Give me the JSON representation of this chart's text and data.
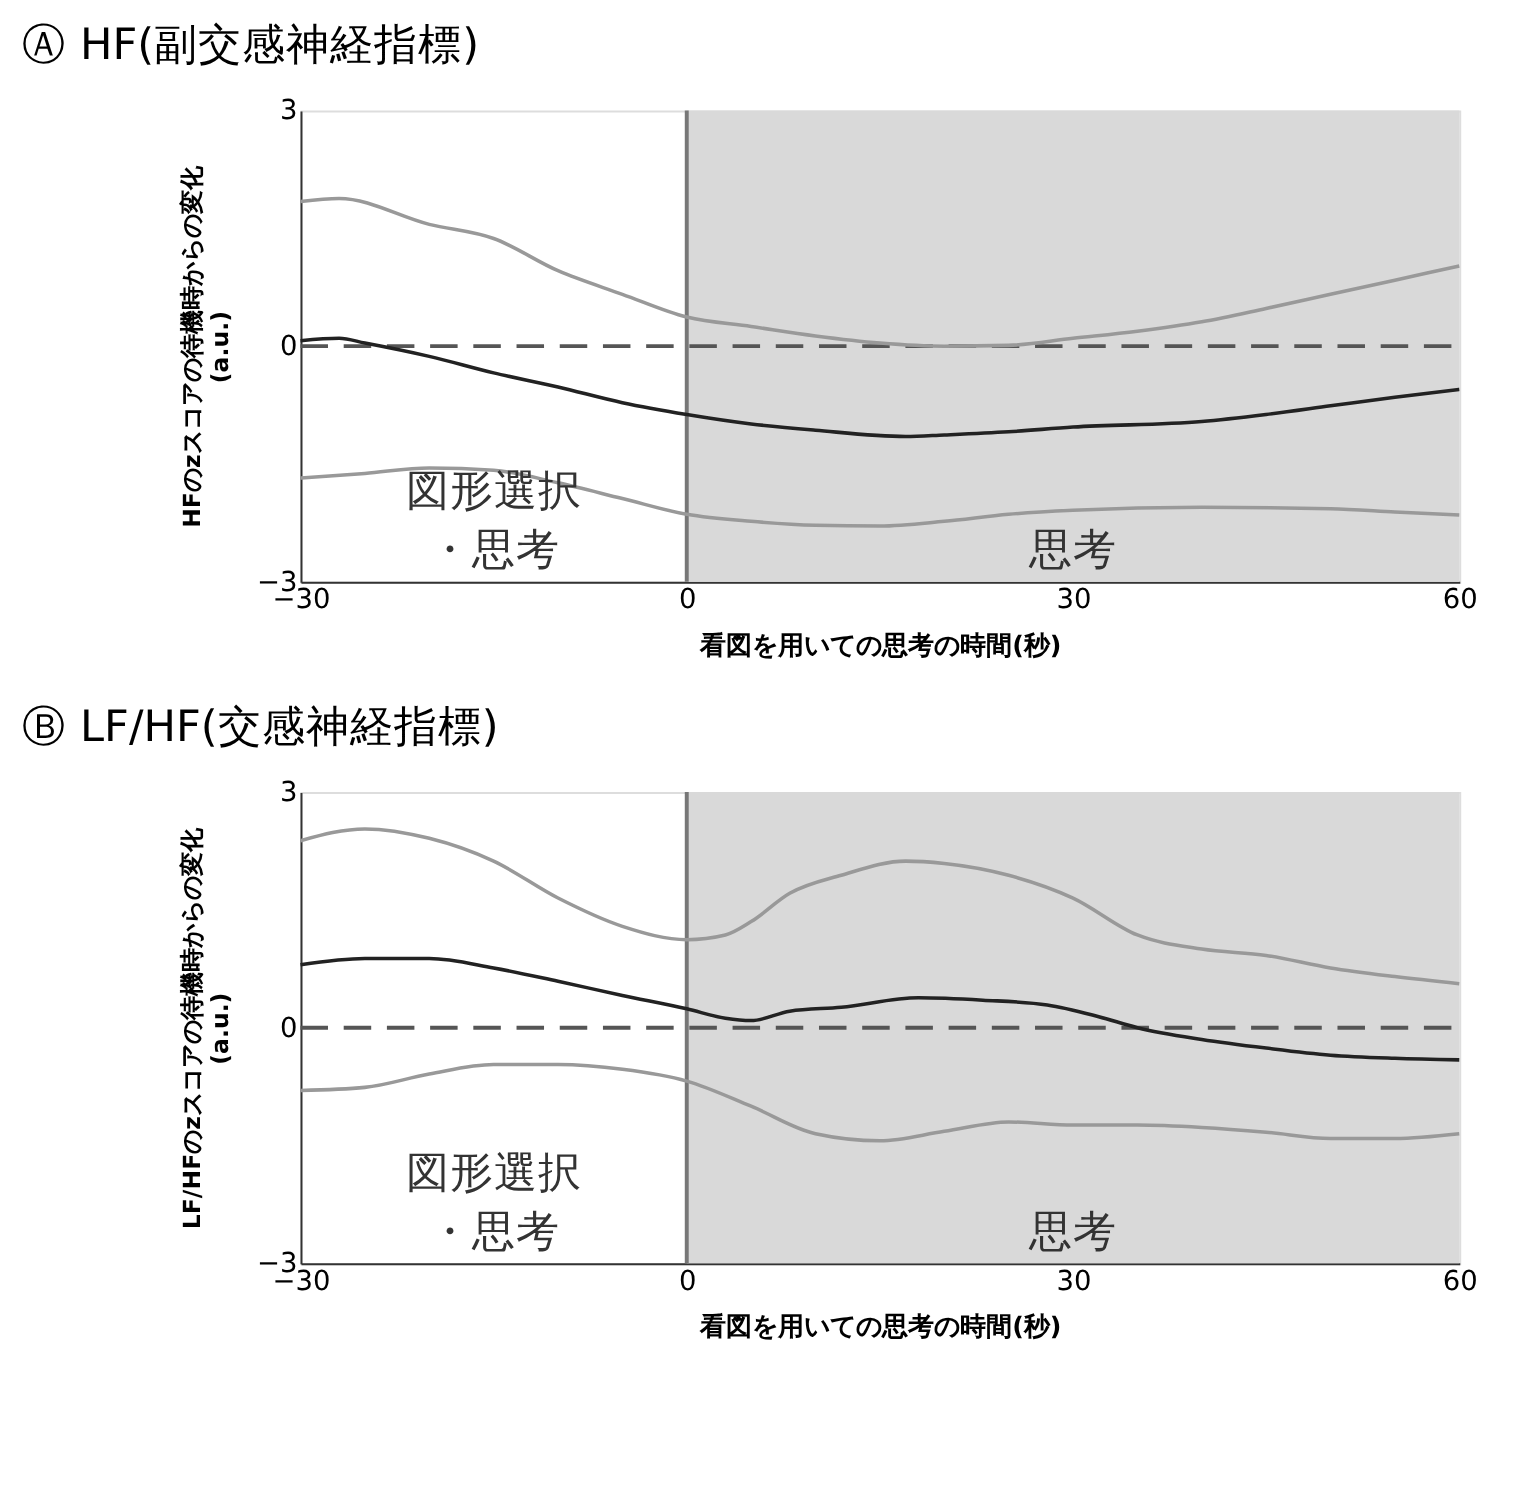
{
  "chart_data": [
    {
      "type": "line",
      "title": "Ⓐ HF(副交感神経指標)",
      "xlabel": "看図を用いての思考の時間(秒)",
      "ylabel": "HFのzスコアの待機時からの変化 (a.u.)",
      "xlim": [
        -30,
        60
      ],
      "xticks": [
        -30,
        0,
        30,
        60
      ],
      "ylim": [
        -3,
        3
      ],
      "yticks": [
        -3,
        0,
        3
      ],
      "series": [
        {
          "color": "#999999",
          "x": [
            -30,
            -27,
            -20,
            -15,
            -10,
            -5,
            0,
            5,
            10,
            15,
            20,
            25,
            30,
            35,
            40,
            45,
            50,
            55,
            60
          ],
          "values": [
            1.84,
            1.88,
            1.55,
            1.37,
            0.96,
            0.66,
            0.37,
            0.25,
            0.13,
            0.04,
            0.0,
            0.01,
            0.1,
            0.19,
            0.31,
            0.48,
            0.66,
            0.84,
            1.02
          ]
        },
        {
          "color": "#222222",
          "x": [
            -30,
            -27,
            -25,
            -20,
            -15,
            -10,
            -5,
            0,
            5,
            10,
            17,
            20,
            25,
            30,
            40,
            45,
            50,
            55,
            60
          ],
          "values": [
            0.07,
            0.1,
            0.04,
            -0.13,
            -0.34,
            -0.52,
            -0.72,
            -0.87,
            -0.99,
            -1.07,
            -1.15,
            -1.13,
            -1.09,
            -1.03,
            -0.96,
            -0.87,
            -0.76,
            -0.65,
            -0.55
          ]
        },
        {
          "color": "#999999",
          "x": [
            -30,
            -25,
            -20,
            -15,
            -10,
            -5,
            0,
            5,
            10,
            15,
            20,
            25,
            30,
            40,
            50,
            55,
            60
          ],
          "values": [
            -1.68,
            -1.62,
            -1.55,
            -1.58,
            -1.74,
            -1.94,
            -2.14,
            -2.23,
            -2.28,
            -2.29,
            -2.23,
            -2.14,
            -2.09,
            -2.05,
            -2.07,
            -2.11,
            -2.15
          ]
        }
      ],
      "ref_lines": [
        {
          "axis": "y",
          "value": 0,
          "color": "#555555",
          "line_style": "dashed"
        },
        {
          "axis": "x",
          "value": 0,
          "color": "#777777",
          "line_style": "solid"
        }
      ],
      "annotations": [
        "図形選択・思考"
      ],
      "bands": [
        {
          "axis": "x",
          "from": 0,
          "to": 60,
          "label": "思考",
          "color": "#d9d9d9"
        }
      ]
    },
    {
      "type": "line",
      "title": "Ⓑ LF/HF(交感神経指標)",
      "xlabel": "看図を用いての思考の時間(秒)",
      "ylabel": "LF/HFのzスコアの待機時からの変化 (a.u.)",
      "xlim": [
        -30,
        60
      ],
      "xticks": [
        -30,
        0,
        30,
        60
      ],
      "ylim": [
        -3,
        3
      ],
      "yticks": [
        -3,
        0,
        3
      ],
      "series": [
        {
          "color": "#999999",
          "x": [
            -30,
            -25,
            -20,
            -15,
            -10,
            -5,
            0,
            3,
            5,
            8,
            12,
            17,
            20,
            25,
            30,
            35,
            40,
            45,
            50,
            55,
            60
          ],
          "values": [
            2.38,
            2.53,
            2.41,
            2.12,
            1.65,
            1.29,
            1.12,
            1.18,
            1.35,
            1.71,
            1.94,
            2.12,
            2.09,
            1.94,
            1.65,
            1.18,
            1.0,
            0.92,
            0.76,
            0.65,
            0.56
          ]
        },
        {
          "color": "#222222",
          "x": [
            -30,
            -25,
            -20,
            -15,
            -10,
            -5,
            0,
            3,
            5,
            8,
            12,
            18,
            23,
            28,
            32,
            35,
            40,
            45,
            50,
            55,
            60
          ],
          "values": [
            0.8,
            0.88,
            0.88,
            0.76,
            0.59,
            0.41,
            0.24,
            0.12,
            0.09,
            0.21,
            0.26,
            0.38,
            0.35,
            0.29,
            0.14,
            0.0,
            -0.15,
            -0.26,
            -0.35,
            -0.39,
            -0.41
          ]
        },
        {
          "color": "#999999",
          "x": [
            -30,
            -25,
            -20,
            -15,
            -10,
            -5,
            0,
            5,
            10,
            15,
            20,
            25,
            30,
            35,
            40,
            45,
            50,
            55,
            60
          ],
          "values": [
            -0.8,
            -0.76,
            -0.59,
            -0.47,
            -0.47,
            -0.53,
            -0.68,
            -1.0,
            -1.35,
            -1.44,
            -1.32,
            -1.2,
            -1.24,
            -1.24,
            -1.27,
            -1.33,
            -1.41,
            -1.41,
            -1.35
          ]
        }
      ],
      "ref_lines": [
        {
          "axis": "y",
          "value": 0,
          "color": "#555555",
          "line_style": "dashed"
        },
        {
          "axis": "x",
          "value": 0,
          "color": "#777777",
          "line_style": "solid"
        }
      ],
      "annotations": [
        "図形選択・思考"
      ],
      "bands": [
        {
          "axis": "x",
          "from": 0,
          "to": 60,
          "label": "思考",
          "color": "#d9d9d9"
        }
      ]
    }
  ]
}
